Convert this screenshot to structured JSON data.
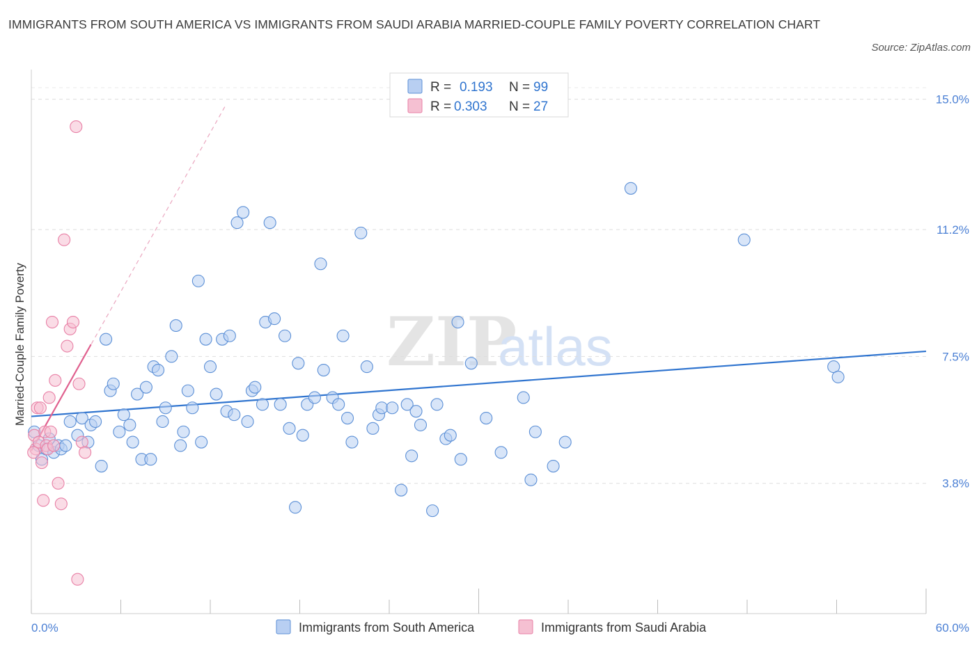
{
  "title": "IMMIGRANTS FROM SOUTH AMERICA VS IMMIGRANTS FROM SAUDI ARABIA MARRIED-COUPLE FAMILY POVERTY CORRELATION CHART",
  "source": "Source: ZipAtlas.com",
  "watermark": {
    "zip": "ZIP",
    "atlas": "atlas"
  },
  "colors": {
    "blue": "#5b8fd6",
    "blue_fill": "#b8cff2",
    "blue_line": "#2f74cf",
    "pink": "#e87fa5",
    "pink_fill": "#f5c0d2",
    "pink_line": "#e0608e",
    "tick": "#4a7fd4"
  },
  "legend_top": [
    {
      "r_label": "R =",
      "r_value": "0.193",
      "n_label": "N =",
      "n_value": "99"
    },
    {
      "r_label": "R =",
      "r_value": "0.303",
      "n_label": "N =",
      "n_value": "27"
    }
  ],
  "chart_data": {
    "type": "scatter",
    "title": "IMMIGRANTS FROM SOUTH AMERICA VS IMMIGRANTS FROM SAUDI ARABIA MARRIED-COUPLE FAMILY POVERTY CORRELATION CHART",
    "xlabel": "",
    "ylabel": "Married-Couple Family Poverty",
    "xlim": [
      0,
      60
    ],
    "ylim": [
      0,
      15.5
    ],
    "x_tick_labels": [
      {
        "value": 0,
        "label": "0.0%"
      },
      {
        "value": 60,
        "label": "60.0%"
      }
    ],
    "y_tick_labels": [
      {
        "value": 3.8,
        "label": "3.8%"
      },
      {
        "value": 7.5,
        "label": "7.5%"
      },
      {
        "value": 11.2,
        "label": "11.2%"
      },
      {
        "value": 15.0,
        "label": "15.0%"
      }
    ],
    "grid": "horizontal dashed",
    "legend_position": "bottom-center",
    "series": [
      {
        "name": "Immigrants from South America",
        "color": "#5b8fd6",
        "trend": {
          "x": [
            0,
            60
          ],
          "y": [
            5.75,
            7.65
          ]
        },
        "points": [
          [
            0.2,
            5.3
          ],
          [
            0.5,
            4.9
          ],
          [
            0.7,
            4.5
          ],
          [
            1.0,
            4.8
          ],
          [
            1.2,
            5.1
          ],
          [
            1.5,
            4.7
          ],
          [
            1.8,
            4.9
          ],
          [
            2.0,
            4.8
          ],
          [
            2.3,
            4.9
          ],
          [
            2.6,
            5.6
          ],
          [
            3.1,
            5.2
          ],
          [
            3.4,
            5.7
          ],
          [
            3.8,
            5.0
          ],
          [
            4.0,
            5.5
          ],
          [
            4.3,
            5.6
          ],
          [
            4.7,
            4.3
          ],
          [
            5.0,
            8.0
          ],
          [
            5.3,
            6.5
          ],
          [
            5.5,
            6.7
          ],
          [
            5.9,
            5.3
          ],
          [
            6.2,
            5.8
          ],
          [
            6.6,
            5.5
          ],
          [
            6.8,
            5.0
          ],
          [
            7.1,
            6.4
          ],
          [
            7.4,
            4.5
          ],
          [
            7.7,
            6.6
          ],
          [
            8.0,
            4.5
          ],
          [
            8.2,
            7.2
          ],
          [
            8.5,
            7.1
          ],
          [
            8.8,
            5.6
          ],
          [
            9.0,
            6.0
          ],
          [
            9.4,
            7.5
          ],
          [
            9.7,
            8.4
          ],
          [
            10.0,
            4.9
          ],
          [
            10.2,
            5.3
          ],
          [
            10.5,
            6.5
          ],
          [
            10.8,
            6.0
          ],
          [
            11.2,
            9.7
          ],
          [
            11.4,
            5.0
          ],
          [
            11.7,
            8.0
          ],
          [
            12.0,
            7.2
          ],
          [
            12.4,
            6.4
          ],
          [
            12.8,
            8.0
          ],
          [
            13.1,
            5.9
          ],
          [
            13.3,
            8.1
          ],
          [
            13.6,
            5.8
          ],
          [
            13.8,
            11.4
          ],
          [
            14.2,
            11.7
          ],
          [
            14.5,
            5.6
          ],
          [
            14.8,
            6.5
          ],
          [
            15.0,
            6.6
          ],
          [
            15.5,
            6.1
          ],
          [
            15.7,
            8.5
          ],
          [
            16.0,
            11.4
          ],
          [
            16.3,
            8.6
          ],
          [
            16.7,
            6.1
          ],
          [
            17.0,
            8.1
          ],
          [
            17.3,
            5.4
          ],
          [
            17.7,
            3.1
          ],
          [
            17.9,
            7.3
          ],
          [
            18.2,
            5.2
          ],
          [
            18.5,
            6.1
          ],
          [
            19.0,
            6.3
          ],
          [
            19.4,
            10.2
          ],
          [
            19.6,
            7.1
          ],
          [
            20.2,
            6.3
          ],
          [
            20.6,
            6.1
          ],
          [
            20.9,
            8.1
          ],
          [
            21.2,
            5.7
          ],
          [
            21.5,
            5.0
          ],
          [
            22.1,
            11.1
          ],
          [
            22.5,
            7.2
          ],
          [
            22.9,
            5.4
          ],
          [
            23.3,
            5.8
          ],
          [
            23.5,
            6.0
          ],
          [
            24.2,
            6.0
          ],
          [
            24.8,
            3.6
          ],
          [
            25.2,
            6.1
          ],
          [
            25.5,
            4.6
          ],
          [
            25.8,
            5.9
          ],
          [
            26.1,
            5.5
          ],
          [
            26.9,
            3.0
          ],
          [
            27.2,
            6.1
          ],
          [
            27.8,
            5.1
          ],
          [
            28.1,
            5.2
          ],
          [
            28.6,
            8.5
          ],
          [
            28.8,
            4.5
          ],
          [
            29.5,
            7.3
          ],
          [
            30.5,
            5.7
          ],
          [
            31.5,
            4.7
          ],
          [
            33.0,
            6.3
          ],
          [
            33.5,
            3.9
          ],
          [
            33.8,
            5.3
          ],
          [
            35.0,
            4.3
          ],
          [
            35.8,
            5.0
          ],
          [
            40.2,
            12.4
          ],
          [
            47.8,
            10.9
          ],
          [
            53.8,
            7.2
          ],
          [
            54.1,
            6.9
          ]
        ]
      },
      {
        "name": "Immigrants from Saudi Arabia",
        "color": "#e87fa5",
        "trend": {
          "x": [
            0,
            4.0
          ],
          "y": [
            4.75,
            7.85
          ]
        },
        "trend_extended": {
          "x": [
            0,
            13.0
          ],
          "y": [
            4.75,
            14.8
          ]
        },
        "points": [
          [
            0.2,
            5.2
          ],
          [
            0.3,
            4.8
          ],
          [
            0.4,
            6.0
          ],
          [
            0.5,
            5.0
          ],
          [
            0.6,
            6.0
          ],
          [
            0.7,
            4.4
          ],
          [
            0.8,
            3.3
          ],
          [
            0.9,
            5.3
          ],
          [
            1.0,
            4.9
          ],
          [
            1.1,
            4.8
          ],
          [
            1.2,
            6.3
          ],
          [
            1.3,
            5.3
          ],
          [
            1.4,
            8.5
          ],
          [
            1.5,
            4.9
          ],
          [
            1.6,
            6.8
          ],
          [
            1.8,
            3.8
          ],
          [
            2.0,
            3.2
          ],
          [
            2.2,
            10.9
          ],
          [
            2.4,
            7.8
          ],
          [
            2.6,
            8.3
          ],
          [
            2.8,
            8.5
          ],
          [
            3.0,
            14.2
          ],
          [
            3.1,
            1.0
          ],
          [
            3.2,
            6.7
          ],
          [
            3.4,
            5.0
          ],
          [
            3.6,
            4.7
          ],
          [
            0.15,
            4.7
          ]
        ]
      }
    ]
  }
}
